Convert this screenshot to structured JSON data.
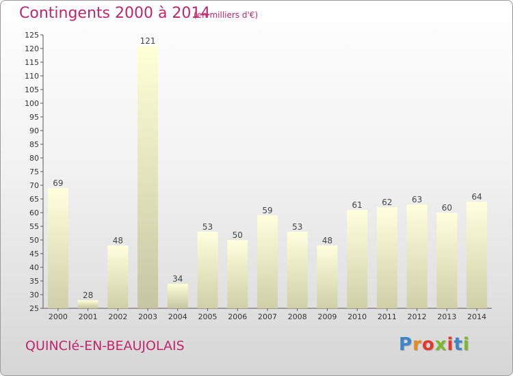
{
  "header": {
    "title": "Contingents 2000 à 2014",
    "subtitle": "(en milliers d'€)"
  },
  "footer": {
    "commune": "QUINCIé-EN-BEAUJOLAIS",
    "logo": "Proxiti",
    "logo_colors": [
      "#3a86c8",
      "#e88a1a",
      "#e23b2e",
      "#7cb82f",
      "#e23b2e",
      "#3a86c8",
      "#7cb82f"
    ]
  },
  "colors": {
    "accent": "#c0266a",
    "bar_top": "#ffffdd",
    "bar_bottom": "#cfcfa8",
    "bar_highlight_top": "#ffffd8",
    "bar_highlight_bottom": "#c6c6a2",
    "axis": "#555555"
  },
  "chart_data": {
    "type": "bar",
    "categories": [
      "2000",
      "2001",
      "2002",
      "2003",
      "2004",
      "2005",
      "2006",
      "2007",
      "2008",
      "2009",
      "2010",
      "2011",
      "2012",
      "2013",
      "2014"
    ],
    "values": [
      69,
      28,
      48,
      121,
      34,
      53,
      50,
      59,
      53,
      48,
      61,
      62,
      63,
      60,
      64
    ],
    "ylim": [
      25,
      125
    ],
    "yticks": [
      25,
      30,
      35,
      40,
      45,
      50,
      55,
      60,
      65,
      70,
      75,
      80,
      85,
      90,
      95,
      100,
      105,
      110,
      115,
      120,
      125
    ],
    "grid": false,
    "legend": "none"
  }
}
